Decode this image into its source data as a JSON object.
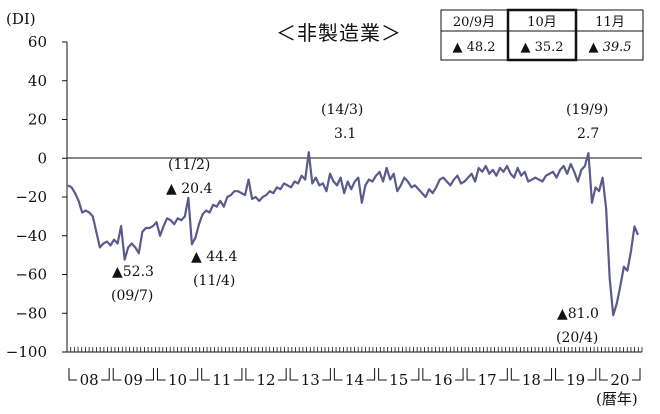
{
  "chart_data": {
    "type": "line",
    "title": "＜非製造業＞",
    "ylabel": "(DI)",
    "xlabel": "(暦年)",
    "ylim": [
      -100,
      60
    ],
    "yticks": [
      60,
      40,
      20,
      0,
      -20,
      -40,
      -60,
      -80,
      -100
    ],
    "year_labels": [
      "08",
      "09",
      "10",
      "11",
      "12",
      "13",
      "14",
      "15",
      "16",
      "17",
      "18",
      "19",
      "20"
    ],
    "grid": false,
    "zero_line": true,
    "color": "#5a5a8c",
    "series": [
      {
        "values": [
          -14,
          -15,
          -18,
          -22,
          -28,
          -27,
          -28,
          -30,
          -38,
          -46,
          -44,
          -43,
          -45,
          -42,
          -44,
          -35,
          -52.3,
          -46,
          -44,
          -46,
          -49,
          -38,
          -36,
          -36,
          -35,
          -33,
          -40,
          -35,
          -31,
          -32,
          -34,
          -31,
          -32,
          -30,
          -20.4,
          -44.4,
          -41,
          -34,
          -29,
          -27,
          -28,
          -24,
          -25,
          -22,
          -25,
          -20,
          -19,
          -17,
          -17,
          -18,
          -19,
          -11,
          -21,
          -20,
          -22,
          -20,
          -19,
          -17,
          -18,
          -15,
          -16,
          -13,
          -14,
          -15,
          -12,
          -13,
          -9,
          -11,
          3.1,
          -13,
          -10,
          -14,
          -13,
          -17,
          -8,
          -12,
          -14,
          -10,
          -18,
          -12,
          -16,
          -12,
          -10,
          -23,
          -14,
          -11,
          -12,
          -9,
          -7,
          -12,
          -5,
          -11,
          -8,
          -17,
          -14,
          -10,
          -12,
          -15,
          -14,
          -16,
          -18,
          -20,
          -16,
          -18,
          -15,
          -11,
          -10,
          -12,
          -14,
          -11,
          -9,
          -13,
          -12,
          -10,
          -8,
          -12,
          -5,
          -7,
          -4,
          -8,
          -6,
          -9,
          -5,
          -7,
          -4,
          -8,
          -10,
          -5,
          -9,
          -7,
          -12,
          -11,
          -10,
          -11,
          -12,
          -9,
          -8,
          -7,
          -10,
          -6,
          -4,
          -8,
          -3,
          -7,
          -12,
          -6,
          -4,
          2.7,
          -23,
          -15,
          -17,
          -10,
          -26,
          -62,
          -81.0,
          -75,
          -66,
          -56,
          -58,
          -48.2,
          -35.2,
          -39.5
        ]
      }
    ],
    "annotations": [
      {
        "value": "▲52.3",
        "date": "(09/7)"
      },
      {
        "value": "(11/2)",
        "date": "▲ 20.4"
      },
      {
        "value": "▲ 44.4",
        "date": "(11/4)"
      },
      {
        "value": "(14/3)",
        "date": "3.1"
      },
      {
        "value": "(19/9)",
        "date": "2.7"
      },
      {
        "value": "▲81.0",
        "date": "(20/4)"
      }
    ]
  },
  "recent_table": {
    "headers": [
      "20/9月",
      "10月",
      "11月"
    ],
    "values": [
      "▲ 48.2",
      "▲ 35.2",
      "▲ 39.5"
    ]
  }
}
